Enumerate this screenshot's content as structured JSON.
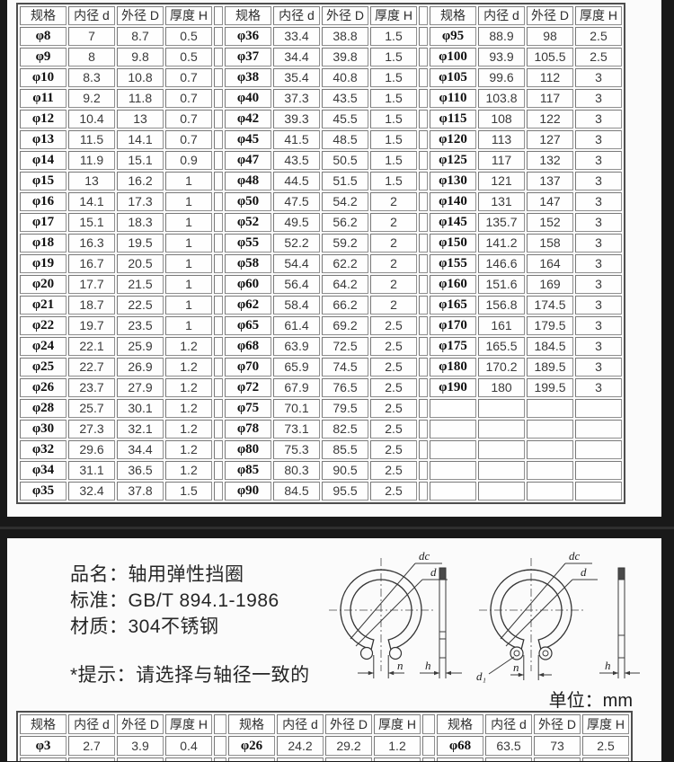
{
  "top_table": {
    "headers": [
      "规格",
      "内径 d",
      "外径 D",
      "厚度 H"
    ],
    "groups": [
      [
        [
          "φ8",
          "7",
          "8.7",
          "0.5"
        ],
        [
          "φ9",
          "8",
          "9.8",
          "0.5"
        ],
        [
          "φ10",
          "8.3",
          "10.8",
          "0.7"
        ],
        [
          "φ11",
          "9.2",
          "11.8",
          "0.7"
        ],
        [
          "φ12",
          "10.4",
          "13",
          "0.7"
        ],
        [
          "φ13",
          "11.5",
          "14.1",
          "0.7"
        ],
        [
          "φ14",
          "11.9",
          "15.1",
          "0.9"
        ],
        [
          "φ15",
          "13",
          "16.2",
          "1"
        ],
        [
          "φ16",
          "14.1",
          "17.3",
          "1"
        ],
        [
          "φ17",
          "15.1",
          "18.3",
          "1"
        ],
        [
          "φ18",
          "16.3",
          "19.5",
          "1"
        ],
        [
          "φ19",
          "16.7",
          "20.5",
          "1"
        ],
        [
          "φ20",
          "17.7",
          "21.5",
          "1"
        ],
        [
          "φ21",
          "18.7",
          "22.5",
          "1"
        ],
        [
          "φ22",
          "19.7",
          "23.5",
          "1"
        ],
        [
          "φ24",
          "22.1",
          "25.9",
          "1.2"
        ],
        [
          "φ25",
          "22.7",
          "26.9",
          "1.2"
        ],
        [
          "φ26",
          "23.7",
          "27.9",
          "1.2"
        ],
        [
          "φ28",
          "25.7",
          "30.1",
          "1.2"
        ],
        [
          "φ30",
          "27.3",
          "32.1",
          "1.2"
        ],
        [
          "φ32",
          "29.6",
          "34.4",
          "1.2"
        ],
        [
          "φ34",
          "31.1",
          "36.5",
          "1.2"
        ],
        [
          "φ35",
          "32.4",
          "37.8",
          "1.5"
        ]
      ],
      [
        [
          "φ36",
          "33.4",
          "38.8",
          "1.5"
        ],
        [
          "φ37",
          "34.4",
          "39.8",
          "1.5"
        ],
        [
          "φ38",
          "35.4",
          "40.8",
          "1.5"
        ],
        [
          "φ40",
          "37.3",
          "43.5",
          "1.5"
        ],
        [
          "φ42",
          "39.3",
          "45.5",
          "1.5"
        ],
        [
          "φ45",
          "41.5",
          "48.5",
          "1.5"
        ],
        [
          "φ47",
          "43.5",
          "50.5",
          "1.5"
        ],
        [
          "φ48",
          "44.5",
          "51.5",
          "1.5"
        ],
        [
          "φ50",
          "47.5",
          "54.2",
          "2"
        ],
        [
          "φ52",
          "49.5",
          "56.2",
          "2"
        ],
        [
          "φ55",
          "52.2",
          "59.2",
          "2"
        ],
        [
          "φ58",
          "54.4",
          "62.2",
          "2"
        ],
        [
          "φ60",
          "56.4",
          "64.2",
          "2"
        ],
        [
          "φ62",
          "58.4",
          "66.2",
          "2"
        ],
        [
          "φ65",
          "61.4",
          "69.2",
          "2.5"
        ],
        [
          "φ68",
          "63.9",
          "72.5",
          "2.5"
        ],
        [
          "φ70",
          "65.9",
          "74.5",
          "2.5"
        ],
        [
          "φ72",
          "67.9",
          "76.5",
          "2.5"
        ],
        [
          "φ75",
          "70.1",
          "79.5",
          "2.5"
        ],
        [
          "φ78",
          "73.1",
          "82.5",
          "2.5"
        ],
        [
          "φ80",
          "75.3",
          "85.5",
          "2.5"
        ],
        [
          "φ85",
          "80.3",
          "90.5",
          "2.5"
        ],
        [
          "φ90",
          "84.5",
          "95.5",
          "2.5"
        ]
      ],
      [
        [
          "φ95",
          "88.9",
          "98",
          "2.5"
        ],
        [
          "φ100",
          "93.9",
          "105.5",
          "2.5"
        ],
        [
          "φ105",
          "99.6",
          "112",
          "3"
        ],
        [
          "φ110",
          "103.8",
          "117",
          "3"
        ],
        [
          "φ115",
          "108",
          "122",
          "3"
        ],
        [
          "φ120",
          "113",
          "127",
          "3"
        ],
        [
          "φ125",
          "117",
          "132",
          "3"
        ],
        [
          "φ130",
          "121",
          "137",
          "3"
        ],
        [
          "φ140",
          "131",
          "147",
          "3"
        ],
        [
          "φ145",
          "135.7",
          "152",
          "3"
        ],
        [
          "φ150",
          "141.2",
          "158",
          "3"
        ],
        [
          "φ155",
          "146.6",
          "164",
          "3"
        ],
        [
          "φ160",
          "151.6",
          "169",
          "3"
        ],
        [
          "φ165",
          "156.8",
          "174.5",
          "3"
        ],
        [
          "φ170",
          "161",
          "179.5",
          "3"
        ],
        [
          "φ175",
          "165.5",
          "184.5",
          "3"
        ],
        [
          "φ180",
          "170.2",
          "189.5",
          "3"
        ],
        [
          "φ190",
          "180",
          "199.5",
          "3"
        ],
        [
          "",
          "",
          "",
          ""
        ],
        [
          "",
          "",
          "",
          ""
        ],
        [
          "",
          "",
          "",
          ""
        ],
        [
          "",
          "",
          "",
          ""
        ],
        [
          "",
          "",
          "",
          ""
        ]
      ]
    ]
  },
  "info": {
    "product_name": "品名：轴用弹性挡圈",
    "standard": "标准：GB/T 894.1-1986",
    "material": "材质：304不锈钢",
    "tip": "*提示：请选择与轴径一致的",
    "unit": "单位：mm"
  },
  "diagram": {
    "labels": {
      "dc": "dc",
      "d": "d",
      "n": "n",
      "h": "h",
      "d1": "d₁"
    }
  },
  "bottom_table": {
    "headers": [
      "规格",
      "内径 d",
      "外径 D",
      "厚度 H"
    ],
    "groups": [
      [
        [
          "φ3",
          "2.7",
          "3.9",
          "0.4"
        ],
        [
          "",
          "",
          "",
          ""
        ]
      ],
      [
        [
          "φ26",
          "24.2",
          "29.2",
          "1.2"
        ],
        [
          "",
          "",
          "",
          ""
        ]
      ],
      [
        [
          "φ68",
          "63.5",
          "73",
          "2.5"
        ],
        [
          "",
          "",
          "",
          ""
        ]
      ]
    ]
  }
}
